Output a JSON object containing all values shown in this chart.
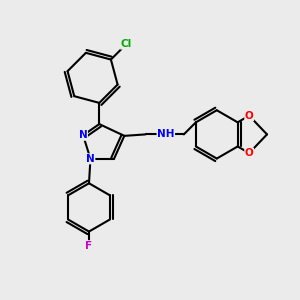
{
  "bg_color": "#ebebeb",
  "bond_color": "#000000",
  "atom_colors": {
    "N": "#0000ff",
    "Cl": "#00aa00",
    "F": "#cc00cc",
    "O": "#ff0000",
    "H": "#000000",
    "C": "#000000"
  },
  "figsize": [
    3.0,
    3.0
  ],
  "dpi": 100
}
